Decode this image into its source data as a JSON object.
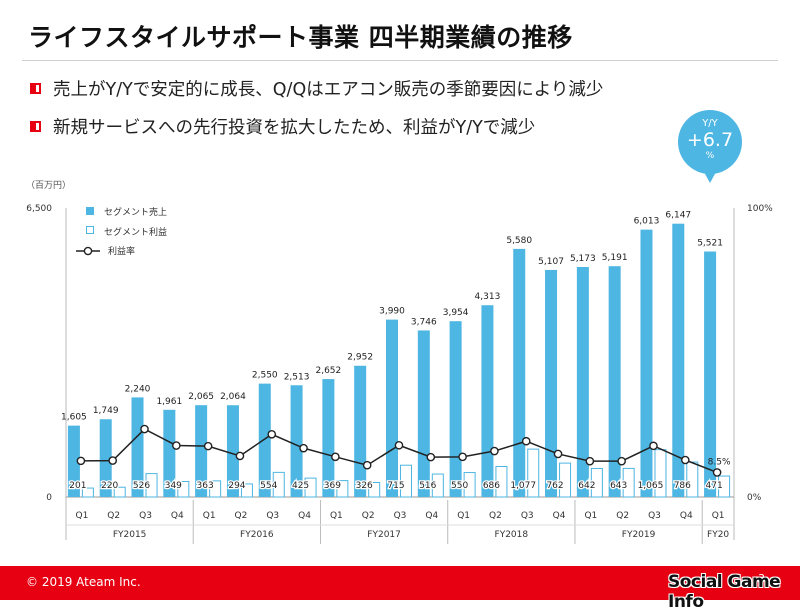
{
  "slide": {
    "title": "ライフスタイルサポート事業 四半期業績の推移",
    "bullets": [
      "売上がY/Yで安定的に成長、Q/Qはエアコン販売の季節要因により減少",
      "新規サービスへの先行投資を拡大したため、利益がY/Yで減少"
    ],
    "badge": {
      "label": "Y/Y",
      "value": "+6.7",
      "unit": "%"
    },
    "footer": {
      "copyright": "© 2019 Ateam Inc.",
      "page": "3"
    },
    "watermark": "Social Game Info",
    "colors": {
      "sales": "#4db6e2",
      "profit_border": "#4db6e2",
      "line": "#222222",
      "accent": "#e60012"
    }
  },
  "chart_data": {
    "type": "bar",
    "unit_label": "（百万円）",
    "left_axis": {
      "min": 0,
      "max": 6500,
      "ticks": [
        "0",
        "6,500"
      ]
    },
    "right_axis": {
      "min": 0,
      "max": 100,
      "ticks": [
        "0%",
        "100%"
      ]
    },
    "categories": [
      "Q1",
      "Q2",
      "Q3",
      "Q4",
      "Q1",
      "Q2",
      "Q3",
      "Q4",
      "Q1",
      "Q2",
      "Q3",
      "Q4",
      "Q1",
      "Q2",
      "Q3",
      "Q4",
      "Q1",
      "Q2",
      "Q3",
      "Q4",
      "Q1"
    ],
    "groups": [
      {
        "label": "FY2015",
        "count": 4
      },
      {
        "label": "FY2016",
        "count": 4
      },
      {
        "label": "FY2017",
        "count": 4
      },
      {
        "label": "FY2018",
        "count": 4
      },
      {
        "label": "FY2019",
        "count": 4
      },
      {
        "label": "FY20",
        "count": 1
      }
    ],
    "series": [
      {
        "name": "セグメント売上",
        "kind": "bar-filled",
        "values": [
          1605,
          1749,
          2240,
          1961,
          2065,
          2064,
          2550,
          2513,
          2652,
          2952,
          3990,
          3746,
          3954,
          4313,
          5580,
          5107,
          5173,
          5191,
          6013,
          6147,
          5521
        ],
        "labels": [
          "1,605",
          "1,749",
          "2,240",
          "1,961",
          "2,065",
          "2,064",
          "2,550",
          "2,513",
          "2,652",
          "2,952",
          "3,990",
          "3,746",
          "3,954",
          "4,313",
          "5,580",
          "5,107",
          "5,173",
          "5,191",
          "6,013",
          "6,147",
          "5,521"
        ]
      },
      {
        "name": "セグメント利益",
        "kind": "bar-outline",
        "values": [
          201,
          220,
          526,
          349,
          363,
          294,
          554,
          425,
          369,
          326,
          715,
          516,
          550,
          686,
          1077,
          762,
          642,
          643,
          1065,
          786,
          471
        ],
        "labels": [
          "201",
          "220",
          "526",
          "349",
          "363",
          "294",
          "554",
          "425",
          "369",
          "326",
          "715",
          "516",
          "550",
          "686",
          "1,077",
          "762",
          "642",
          "643",
          "1,065",
          "786",
          "471"
        ]
      },
      {
        "name": "利益率",
        "kind": "line",
        "values": [
          12.5,
          12.6,
          23.5,
          17.8,
          17.6,
          14.2,
          21.7,
          16.9,
          13.9,
          11.0,
          17.9,
          13.8,
          13.9,
          15.9,
          19.3,
          14.9,
          12.4,
          12.4,
          17.7,
          12.8,
          8.5
        ],
        "labels": [
          "",
          "",
          "",
          "",
          "",
          "",
          "",
          "",
          "",
          "",
          "",
          "",
          "",
          "",
          "",
          "",
          "",
          "",
          "",
          "",
          "8.5%"
        ]
      }
    ],
    "legend": [
      "セグメント売上",
      "セグメント利益",
      "利益率"
    ],
    "legend_position": "top-left"
  }
}
